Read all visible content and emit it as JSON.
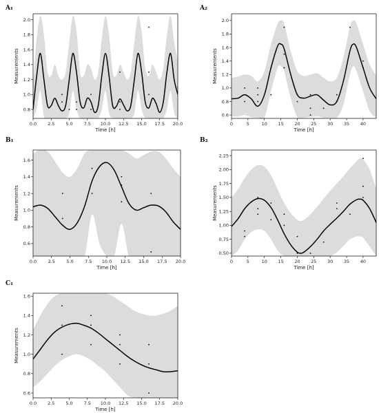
{
  "chart_data": [
    {
      "panel": "A₁",
      "type": "line",
      "xlabel": "Time [h]",
      "ylabel": "Measurements",
      "xlim": [
        0,
        20
      ],
      "ylim": [
        0.68,
        2.08
      ],
      "xticks": [
        "0.0",
        "2.5",
        "5.0",
        "7.5",
        "10.0",
        "12.5",
        "15.0",
        "17.5",
        "20.0"
      ],
      "xtick_values": [
        0,
        2.5,
        5,
        7.5,
        10,
        12.5,
        15,
        17.5,
        20
      ],
      "yticks": [
        "0.8",
        "1.0",
        "1.2",
        "1.4",
        "1.6",
        "1.8",
        "2.0"
      ],
      "ytick_values": [
        0.8,
        1.0,
        1.2,
        1.4,
        1.6,
        1.8,
        2.0
      ],
      "mean": {
        "x": [
          0,
          0.5,
          1,
          1.5,
          2,
          2.5,
          3,
          3.5,
          4,
          4.5,
          5,
          5.5,
          6,
          6.5,
          7,
          7.5,
          8,
          8.5,
          9,
          9.5,
          10,
          10.5,
          11,
          11.5,
          12,
          12.5,
          13,
          13.5,
          14,
          14.5,
          15,
          15.5,
          16,
          16.5,
          17,
          17.5,
          18,
          18.5,
          19,
          19.5,
          20
        ],
        "y": [
          0.8,
          1.25,
          1.55,
          1.2,
          0.85,
          0.85,
          0.95,
          0.85,
          0.78,
          0.85,
          1.2,
          1.55,
          1.3,
          0.9,
          0.82,
          0.95,
          0.9,
          0.76,
          0.85,
          1.25,
          1.55,
          1.25,
          0.85,
          0.84,
          0.94,
          0.86,
          0.78,
          0.85,
          1.2,
          1.55,
          1.3,
          0.9,
          0.82,
          0.95,
          0.88,
          0.76,
          0.9,
          1.3,
          1.55,
          1.2,
          1.0
        ]
      },
      "band_upper": [
        1.15,
        1.75,
        2.05,
        1.8,
        1.3,
        1.25,
        1.4,
        1.25,
        1.2,
        1.3,
        1.7,
        2.05,
        1.85,
        1.3,
        1.25,
        1.4,
        1.35,
        1.2,
        1.3,
        1.75,
        2.05,
        1.8,
        1.3,
        1.25,
        1.4,
        1.3,
        1.2,
        1.3,
        1.7,
        2.05,
        1.85,
        1.35,
        1.25,
        1.4,
        1.3,
        1.2,
        1.35,
        1.8,
        2.05,
        1.7,
        1.45
      ],
      "band_lower": [
        0.68,
        0.8,
        1.05,
        0.7,
        0.68,
        0.68,
        0.68,
        0.68,
        0.68,
        0.68,
        0.75,
        1.05,
        0.8,
        0.68,
        0.68,
        0.68,
        0.68,
        0.68,
        0.68,
        0.8,
        1.05,
        0.75,
        0.68,
        0.68,
        0.68,
        0.68,
        0.68,
        0.68,
        0.75,
        1.05,
        0.8,
        0.68,
        0.68,
        0.68,
        0.68,
        0.68,
        0.68,
        0.8,
        1.05,
        0.75,
        0.68
      ],
      "points": {
        "x": [
          4,
          4,
          5,
          6,
          6,
          8,
          8,
          12,
          12,
          12,
          16,
          16,
          16,
          20
        ],
        "y": [
          1.0,
          0.9,
          0.8,
          0.8,
          0.9,
          1.0,
          0.8,
          0.8,
          0.9,
          1.3,
          1.9,
          1.3,
          1.0,
          1.1
        ]
      }
    },
    {
      "panel": "A₂",
      "type": "line",
      "xlabel": "Time [h]",
      "ylabel": "Measurements",
      "xlim": [
        0,
        44
      ],
      "ylim": [
        0.55,
        2.1
      ],
      "xticks": [
        "0",
        "5",
        "10",
        "15",
        "20",
        "25",
        "30",
        "35",
        "40"
      ],
      "xtick_values": [
        0,
        5,
        10,
        15,
        20,
        25,
        30,
        35,
        40
      ],
      "yticks": [
        "0.6",
        "0.8",
        "1.0",
        "1.2",
        "1.4",
        "1.6",
        "1.8",
        "2.0"
      ],
      "ytick_values": [
        0.6,
        0.8,
        1.0,
        1.2,
        1.4,
        1.6,
        1.8,
        2.0
      ],
      "mean": {
        "x": [
          0,
          2,
          4,
          6,
          8,
          10,
          12,
          14,
          15,
          16,
          18,
          20,
          22,
          24,
          26,
          28,
          30,
          32,
          34,
          36,
          37,
          38,
          40,
          42,
          44
        ],
        "y": [
          0.84,
          0.85,
          0.9,
          0.84,
          0.73,
          0.9,
          1.3,
          1.62,
          1.65,
          1.58,
          1.2,
          0.9,
          0.85,
          0.88,
          0.9,
          0.82,
          0.75,
          0.8,
          1.1,
          1.55,
          1.65,
          1.6,
          1.3,
          1.0,
          0.84
        ]
      },
      "band_upper": [
        1.15,
        1.17,
        1.2,
        1.18,
        1.1,
        1.25,
        1.65,
        1.95,
        2.0,
        1.95,
        1.55,
        1.25,
        1.18,
        1.2,
        1.22,
        1.15,
        1.1,
        1.15,
        1.45,
        1.9,
        2.0,
        1.95,
        1.65,
        1.35,
        1.18
      ],
      "band_lower": [
        0.58,
        0.58,
        0.6,
        0.57,
        0.56,
        0.56,
        0.95,
        1.3,
        1.32,
        1.25,
        0.85,
        0.57,
        0.56,
        0.57,
        0.58,
        0.56,
        0.56,
        0.56,
        0.75,
        1.2,
        1.32,
        1.25,
        0.95,
        0.66,
        0.56
      ],
      "points": {
        "x": [
          4,
          4,
          8,
          8,
          8,
          12,
          12,
          16,
          16,
          16,
          20,
          20,
          24,
          24,
          24,
          28,
          32,
          32,
          36,
          40,
          40
        ],
        "y": [
          1.0,
          0.8,
          1.0,
          0.9,
          0.8,
          1.3,
          0.9,
          1.9,
          1.5,
          1.3,
          0.9,
          0.8,
          0.9,
          0.7,
          0.6,
          0.7,
          0.8,
          0.9,
          1.9,
          1.4,
          1.3
        ]
      }
    },
    {
      "panel": "B₁",
      "type": "line",
      "xlabel": "Time [h]",
      "ylabel": "Measurements",
      "xlim": [
        0,
        20
      ],
      "ylim": [
        0.45,
        1.72
      ],
      "xticks": [
        "0.0",
        "2.5",
        "5.0",
        "7.5",
        "10.0",
        "12.5",
        "15.0",
        "17.5",
        "20.0"
      ],
      "xtick_values": [
        0,
        2.5,
        5,
        7.5,
        10,
        12.5,
        15,
        17.5,
        20
      ],
      "yticks": [
        "0.6",
        "0.8",
        "1.0",
        "1.2",
        "1.4",
        "1.6"
      ],
      "ytick_values": [
        0.6,
        0.8,
        1.0,
        1.2,
        1.4,
        1.6
      ],
      "mean": {
        "x": [
          0,
          1,
          2,
          3,
          4,
          5,
          6,
          7,
          8,
          9,
          10,
          11,
          12,
          13,
          14,
          15,
          16,
          17,
          18,
          19,
          20
        ],
        "y": [
          1.04,
          1.06,
          1.02,
          0.92,
          0.82,
          0.77,
          0.85,
          1.05,
          1.35,
          1.52,
          1.57,
          1.48,
          1.28,
          1.08,
          1.0,
          1.03,
          1.06,
          1.05,
          0.98,
          0.86,
          0.77
        ]
      },
      "band_upper": [
        1.68,
        1.72,
        1.7,
        1.58,
        1.45,
        1.4,
        1.5,
        1.68,
        1.72,
        1.72,
        1.72,
        1.72,
        1.72,
        1.68,
        1.62,
        1.66,
        1.7,
        1.7,
        1.62,
        1.5,
        1.4
      ],
      "band_lower": [
        0.45,
        0.45,
        0.45,
        0.45,
        0.45,
        0.45,
        0.45,
        0.45,
        0.95,
        0.6,
        0.45,
        0.45,
        0.84,
        0.45,
        0.45,
        0.45,
        0.45,
        0.45,
        0.45,
        0.45,
        0.45
      ],
      "points": {
        "x": [
          4,
          4,
          8,
          8,
          12,
          12,
          12,
          16,
          16
        ],
        "y": [
          1.2,
          0.9,
          1.5,
          1.2,
          1.4,
          1.3,
          1.1,
          1.2,
          0.5
        ]
      }
    },
    {
      "panel": "B₂",
      "type": "line",
      "xlabel": "Time [h]",
      "ylabel": "Measurements",
      "xlim": [
        0,
        44
      ],
      "ylim": [
        0.45,
        2.35
      ],
      "xticks": [
        "0",
        "5",
        "10",
        "15",
        "20",
        "25",
        "30",
        "35",
        "40"
      ],
      "xtick_values": [
        0,
        5,
        10,
        15,
        20,
        25,
        30,
        35,
        40
      ],
      "yticks": [
        "0.50",
        "0.75",
        "1.00",
        "1.25",
        "1.50",
        "1.75",
        "2.00",
        "2.25"
      ],
      "ytick_values": [
        0.5,
        0.75,
        1.0,
        1.25,
        1.5,
        1.75,
        2.0,
        2.25
      ],
      "mean": {
        "x": [
          0,
          2,
          4,
          6,
          8,
          10,
          12,
          14,
          16,
          18,
          20,
          21,
          22,
          24,
          26,
          28,
          30,
          32,
          34,
          36,
          38,
          39,
          40,
          42,
          44
        ],
        "y": [
          0.98,
          1.12,
          1.3,
          1.42,
          1.48,
          1.45,
          1.32,
          1.1,
          0.85,
          0.65,
          0.52,
          0.5,
          0.52,
          0.62,
          0.75,
          0.9,
          1.02,
          1.13,
          1.25,
          1.38,
          1.46,
          1.47,
          1.45,
          1.3,
          1.05
        ]
      },
      "band_upper": [
        1.5,
        1.65,
        1.85,
        2.0,
        2.08,
        2.05,
        1.9,
        1.65,
        1.4,
        1.22,
        1.1,
        1.08,
        1.1,
        1.2,
        1.33,
        1.48,
        1.62,
        1.75,
        1.88,
        2.02,
        2.15,
        2.2,
        2.18,
        2.0,
        1.65
      ],
      "band_lower": [
        0.45,
        0.55,
        0.75,
        0.88,
        0.93,
        0.9,
        0.75,
        0.55,
        0.45,
        0.45,
        0.45,
        0.45,
        0.45,
        0.45,
        0.45,
        0.45,
        0.45,
        0.52,
        0.63,
        0.75,
        0.8,
        0.8,
        0.78,
        0.62,
        0.45
      ],
      "points": {
        "x": [
          4,
          4,
          8,
          8,
          8,
          12,
          12,
          16,
          16,
          20,
          20,
          24,
          28,
          32,
          32,
          36,
          40,
          40,
          40
        ],
        "y": [
          0.9,
          0.8,
          1.5,
          1.3,
          1.2,
          1.4,
          1.1,
          1.2,
          1.0,
          0.8,
          0.5,
          0.5,
          0.7,
          1.4,
          1.3,
          1.2,
          2.2,
          1.7,
          1.5
        ]
      }
    },
    {
      "panel": "C₁",
      "type": "line",
      "xlabel": "Time [h]",
      "ylabel": "Measurements",
      "xlim": [
        0,
        20
      ],
      "ylim": [
        0.55,
        1.63
      ],
      "xticks": [
        "0.0",
        "2.5",
        "5.0",
        "7.5",
        "10.0",
        "12.5",
        "15.0",
        "17.5",
        "20.0"
      ],
      "xtick_values": [
        0,
        2.5,
        5,
        7.5,
        10,
        12.5,
        15,
        17.5,
        20
      ],
      "yticks": [
        "0.6",
        "0.8",
        "1.0",
        "1.2",
        "1.4",
        "1.6"
      ],
      "ytick_values": [
        0.6,
        0.8,
        1.0,
        1.2,
        1.4,
        1.6
      ],
      "mean": {
        "x": [
          0,
          1,
          2,
          3,
          4,
          5,
          6,
          7,
          8,
          9,
          10,
          11,
          12,
          13,
          14,
          15,
          16,
          17,
          18,
          19,
          20
        ],
        "y": [
          0.95,
          1.05,
          1.15,
          1.23,
          1.28,
          1.31,
          1.32,
          1.3,
          1.27,
          1.22,
          1.16,
          1.1,
          1.04,
          0.98,
          0.93,
          0.89,
          0.86,
          0.84,
          0.82,
          0.82,
          0.83
        ]
      },
      "band_upper": [
        1.25,
        1.4,
        1.52,
        1.6,
        1.63,
        1.63,
        1.63,
        1.63,
        1.63,
        1.63,
        1.63,
        1.6,
        1.55,
        1.5,
        1.45,
        1.42,
        1.4,
        1.4,
        1.42,
        1.45,
        1.5
      ],
      "band_lower": [
        0.66,
        0.72,
        0.8,
        0.88,
        0.94,
        0.98,
        1.0,
        0.98,
        0.94,
        0.88,
        0.82,
        0.74,
        0.66,
        0.58,
        0.55,
        0.55,
        0.55,
        0.55,
        0.55,
        0.55,
        0.55
      ],
      "points": {
        "x": [
          4,
          4,
          4,
          8,
          8,
          8,
          12,
          12,
          12,
          16,
          16,
          16
        ],
        "y": [
          1.5,
          1.3,
          1.0,
          1.4,
          1.3,
          1.1,
          1.2,
          1.1,
          0.9,
          1.1,
          0.9,
          0.6
        ]
      }
    }
  ]
}
